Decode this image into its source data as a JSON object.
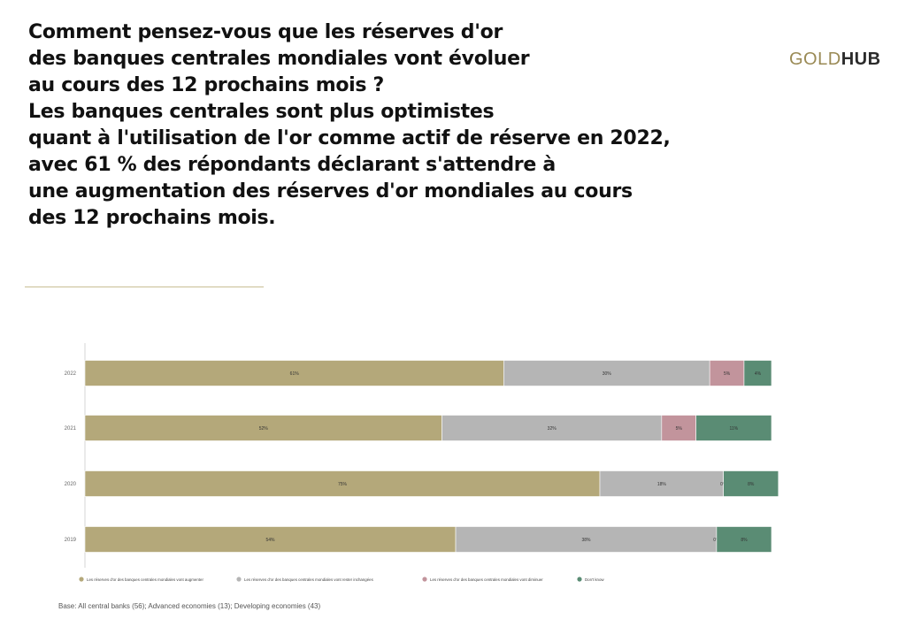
{
  "headline": {
    "lines": [
      "Comment pensez-vous que les réserves d'or",
      "des banques centrales mondiales vont évoluer",
      "au cours des 12 prochains mois ?",
      "Les banques centrales sont plus optimistes",
      "quant à l'utilisation de l'or comme actif de réserve en 2022,",
      "avec 61 % des répondants déclarant s'attendre à",
      "une augmentation des réserves d'or mondiales au cours",
      "des 12 prochains mois."
    ]
  },
  "logo": {
    "part1": "GOLD",
    "part2": "HUB"
  },
  "footer": {
    "base_note": "Base: All central banks (56); Advanced economies (13); Developing economies (43)"
  },
  "chart_data": {
    "type": "bar",
    "orientation": "horizontal",
    "stacked": true,
    "categories": [
      "2022",
      "2021",
      "2020",
      "2019"
    ],
    "series": [
      {
        "name": "Les réserves d'or des banques centrales mondiales vont augmenter",
        "values": [
          61,
          52,
          75,
          54
        ],
        "labels": [
          "61%",
          "52%",
          "75%",
          "54%"
        ],
        "color": "#b4a87a"
      },
      {
        "name": "Les réserves d'or des banques centrales mondiales vont rester inchangées",
        "values": [
          30,
          32,
          18,
          38
        ],
        "labels": [
          "30%",
          "32%",
          "18%",
          "38%"
        ],
        "color": "#b5b5b5"
      },
      {
        "name": "Les réserves d'or des banques centrales mondiales vont diminuer",
        "values": [
          5,
          5,
          0,
          0
        ],
        "labels": [
          "5%",
          "5%",
          "0%",
          "0%"
        ],
        "color": "#c2949c"
      },
      {
        "name": "Don't know",
        "values": [
          4,
          11,
          8,
          8
        ],
        "labels": [
          "4%",
          "11%",
          "8%",
          "8%"
        ],
        "color": "#5a8c74"
      }
    ],
    "xlim": [
      0,
      100
    ],
    "grid": false,
    "legend_position": "bottom"
  }
}
